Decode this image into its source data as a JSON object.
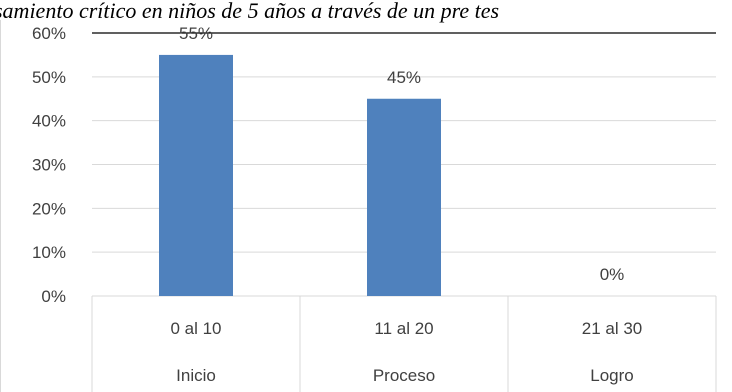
{
  "chart_data": {
    "type": "bar",
    "title": "samiento crítico en niños de 5 años a través de un pre tes",
    "categories": [
      "0 al 10",
      "11 al 20",
      "21 al 30"
    ],
    "category_groups": [
      "Inicio",
      "Proceso",
      "Logro"
    ],
    "values": [
      55,
      45,
      0
    ],
    "data_labels": [
      "55%",
      "45%",
      "0%"
    ],
    "y_ticks": [
      0,
      10,
      20,
      30,
      40,
      50,
      60
    ],
    "y_tick_labels": [
      "0%",
      "10%",
      "20%",
      "30%",
      "40%",
      "50%",
      "60%"
    ],
    "ylim": [
      0,
      60
    ],
    "grid": true,
    "legend": "none",
    "xlabel": "",
    "ylabel": "",
    "bar_color": "#4F81BD",
    "gridline_color": "#D9D9D9",
    "text_color": "#404040"
  }
}
